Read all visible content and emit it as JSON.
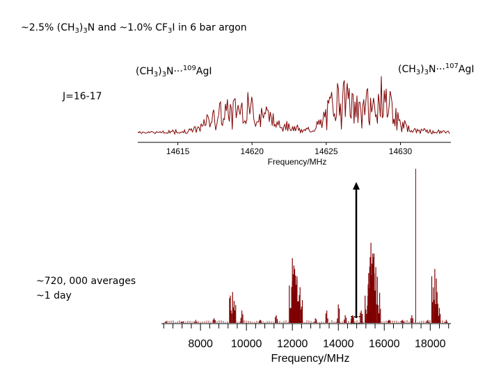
{
  "title": {
    "prefix": "~2.5% (CH",
    "sub1": "3",
    "mid1": ")",
    "sub2": "3",
    "mid2": "N and ~1.0% CF",
    "sub3": "3",
    "suffix": "I in 6 bar argon"
  },
  "labels": {
    "isotope109": {
      "pre": "(CH",
      "s1": "3",
      "m1": ")",
      "s2": "3",
      "m2": "N···",
      "sup": "109",
      "post": "AgI"
    },
    "isotope107": {
      "pre": "(CH",
      "s1": "3",
      "m1": ")",
      "s2": "3",
      "m2": "N···",
      "sup": "107",
      "post": "AgI"
    },
    "transition": "J=16-17",
    "averages_line1": "~720, 000 averages",
    "averages_line2": "~1 day"
  },
  "colors": {
    "spectrum": "#7f0000",
    "axis": "#000000",
    "arrow": "#000000"
  },
  "chart_data": [
    {
      "type": "line",
      "panel": "top-zoom",
      "xlabel": "Frequency/MHz",
      "ylabel": "",
      "xlim": [
        14612.3,
        14633.4
      ],
      "xticks": [
        14615,
        14620,
        14625,
        14630
      ],
      "xtick_labels": [
        "14615",
        "14620",
        "14625",
        "14630"
      ],
      "series": [
        {
          "x": [
            14612.5,
            14613.5,
            14614.5,
            14615.5,
            14616.5,
            14617.0,
            14617.5,
            14618.0,
            14618.5,
            14619.0,
            14619.5,
            14620.0,
            14620.5,
            14621.0,
            14621.5,
            14622.0,
            14622.5,
            14623.0,
            14623.5,
            14624.0,
            14624.5,
            14625.0,
            14625.5,
            14626.0,
            14626.5,
            14627.0,
            14627.5,
            14628.0,
            14628.5,
            14629.0,
            14629.5,
            14630.0,
            14630.5,
            14631.0,
            14632.0,
            14633.0
          ],
          "y": [
            0.02,
            0.02,
            0.03,
            0.04,
            0.08,
            0.22,
            0.3,
            0.35,
            0.38,
            0.42,
            0.45,
            0.4,
            0.38,
            0.33,
            0.25,
            0.18,
            0.12,
            0.08,
            0.05,
            0.06,
            0.15,
            0.32,
            0.55,
            0.6,
            0.58,
            0.5,
            0.52,
            0.48,
            0.42,
            1.0,
            0.35,
            0.22,
            0.1,
            0.05,
            0.03,
            0.02
          ]
        }
      ]
    },
    {
      "type": "line",
      "panel": "bottom-full",
      "xlabel": "Frequency/MHz",
      "ylabel": "",
      "xlim": [
        6300,
        18900
      ],
      "xticks": [
        8000,
        10000,
        12000,
        14000,
        16000,
        18000
      ],
      "xtick_labels": [
        "8000",
        "10000",
        "12000",
        "14000",
        "16000",
        "18000"
      ],
      "series": [
        {
          "x": [
            6500,
            7200,
            7800,
            8600,
            9400,
            9800,
            10600,
            11300,
            12000,
            12100,
            12200,
            12300,
            13000,
            13500,
            14000,
            14300,
            14600,
            14620,
            15000,
            15300,
            15420,
            15500,
            15700,
            16200,
            16800,
            17200,
            17500,
            17900,
            18200,
            18300,
            18700
          ],
          "y": [
            0.01,
            0.01,
            0.02,
            0.03,
            0.2,
            0.08,
            0.02,
            0.05,
            0.42,
            0.35,
            0.28,
            0.18,
            0.03,
            0.08,
            0.12,
            0.05,
            0.04,
            0.05,
            0.08,
            0.25,
            0.52,
            0.45,
            0.3,
            0.02,
            0.02,
            0.05,
            1.0,
            0.02,
            0.35,
            0.2,
            0.02
          ]
        }
      ]
    }
  ]
}
